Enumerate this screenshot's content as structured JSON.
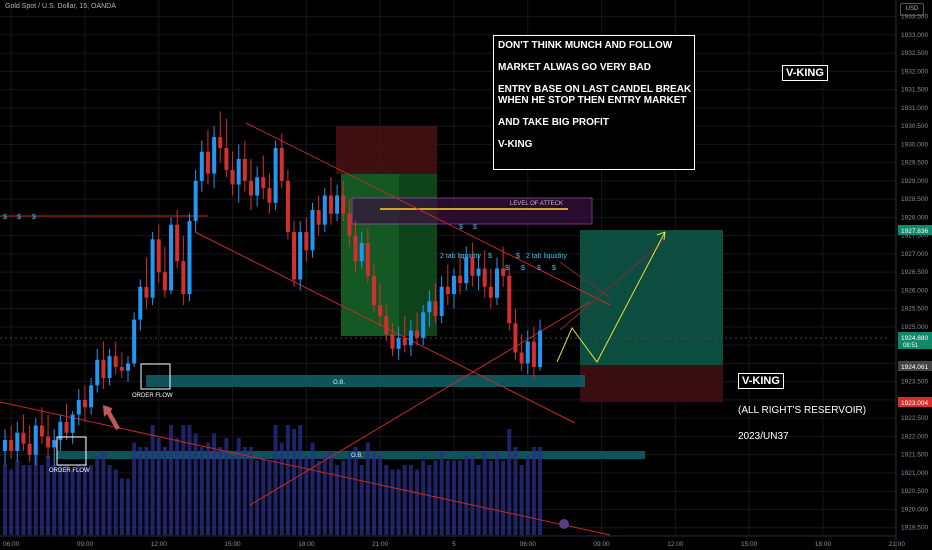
{
  "header": {
    "symbol_line": "Gold Spot / U.S. Dollar, 15, OANDA",
    "currency_badge": "USD"
  },
  "colors": {
    "bull": "#2196f3",
    "bear": "#d32f2f",
    "ob_zone": "#0e5c63",
    "target_zone": "#0d4d40",
    "stop_zone": "#4a1014",
    "red_line": "#c62828",
    "yellow_path": "#e0e040",
    "price_label_green": "#0e8a6b",
    "price_label_red": "#d32f2f",
    "volume": "#2a2f8a"
  },
  "notes": {
    "lines": [
      "DON'T THINK MUNCH AND FOLLOW",
      "",
      "MARKET ALWAS GO VERY BAD",
      "",
      "ENTRY BASE ON LAST CANDEL BREAK",
      "WHEN HE STOP THEN ENTRY MARKET",
      "",
      "AND TAKE BIG PROFIT",
      "",
      "V-KING"
    ]
  },
  "branding": {
    "vking_top": "V-KING",
    "vking_right": "V-KING",
    "rights": "(ALL RIGHT'S RESERVOIR)",
    "date": "2023/UN37"
  },
  "annotations": {
    "order_flow_1": "ORDER FLOW",
    "order_flow_2": "ORDER FLOW",
    "ob_1": "O.B.",
    "ob_2": "O.B.",
    "level": "LEVEL OF ATTECK",
    "liq_1": "2 tab liquidity",
    "liq_2": "2 tab liquidity",
    "dollar": "$"
  },
  "chart_data": {
    "type": "candlestick",
    "symbol": "Gold Spot / U.S. Dollar",
    "interval": "15",
    "exchange": "OANDA",
    "ylim": [
      1919.3,
      1933.9
    ],
    "y_ticks": [
      "1933.500",
      "1933.000",
      "1932.500",
      "1932.000",
      "1931.500",
      "1931.000",
      "1930.500",
      "1930.000",
      "1929.500",
      "1929.000",
      "1928.500",
      "1928.000",
      "1927.500",
      "1927.000",
      "1926.500",
      "1926.000",
      "1925.500",
      "1925.000",
      "1924.500",
      "1924.000",
      "1923.500",
      "1923.000",
      "1922.500",
      "1922.000",
      "1921.500",
      "1921.000",
      "1920.500",
      "1920.000",
      "1919.500"
    ],
    "x_ticks": [
      {
        "label": "06:00",
        "i": 1
      },
      {
        "label": "09:00",
        "i": 13
      },
      {
        "label": "12:00",
        "i": 25
      },
      {
        "label": "15:00",
        "i": 37
      },
      {
        "label": "18:00",
        "i": 49
      },
      {
        "label": "21:00",
        "i": 61
      },
      {
        "label": "5",
        "i": 73
      },
      {
        "label": "06:00",
        "i": 85
      },
      {
        "label": "09:00",
        "i": 97
      },
      {
        "label": "12:00",
        "i": 109
      },
      {
        "label": "15:00",
        "i": 121
      },
      {
        "label": "18:00",
        "i": 133
      },
      {
        "label": "21:00",
        "i": 145
      }
    ],
    "price_labels": {
      "target": "1927.836",
      "current": "1924.880",
      "countdown": "08:51",
      "entry": "1924.061",
      "stop": "1923.004"
    },
    "candles": [
      {
        "o": 1921.6,
        "h": 1922.2,
        "l": 1921.2,
        "c": 1921.9
      },
      {
        "o": 1921.9,
        "h": 1922.3,
        "l": 1921.4,
        "c": 1921.6
      },
      {
        "o": 1921.6,
        "h": 1922.4,
        "l": 1921.3,
        "c": 1922.1
      },
      {
        "o": 1922.1,
        "h": 1922.6,
        "l": 1921.6,
        "c": 1921.8
      },
      {
        "o": 1921.8,
        "h": 1922.3,
        "l": 1921.3,
        "c": 1921.5
      },
      {
        "o": 1921.5,
        "h": 1922.5,
        "l": 1921.2,
        "c": 1922.3
      },
      {
        "o": 1922.3,
        "h": 1922.8,
        "l": 1921.8,
        "c": 1922.0
      },
      {
        "o": 1922.0,
        "h": 1922.6,
        "l": 1921.4,
        "c": 1921.7
      },
      {
        "o": 1921.7,
        "h": 1922.2,
        "l": 1921.2,
        "c": 1921.9
      },
      {
        "o": 1921.9,
        "h": 1922.6,
        "l": 1921.6,
        "c": 1922.4
      },
      {
        "o": 1922.4,
        "h": 1922.9,
        "l": 1921.9,
        "c": 1922.1
      },
      {
        "o": 1922.1,
        "h": 1922.7,
        "l": 1921.8,
        "c": 1922.6
      },
      {
        "o": 1922.6,
        "h": 1923.3,
        "l": 1922.3,
        "c": 1923.0
      },
      {
        "o": 1923.0,
        "h": 1923.4,
        "l": 1922.4,
        "c": 1922.8
      },
      {
        "o": 1922.8,
        "h": 1923.6,
        "l": 1922.6,
        "c": 1923.4
      },
      {
        "o": 1923.4,
        "h": 1924.4,
        "l": 1923.2,
        "c": 1924.1
      },
      {
        "o": 1924.1,
        "h": 1924.6,
        "l": 1923.3,
        "c": 1923.6
      },
      {
        "o": 1923.6,
        "h": 1924.4,
        "l": 1923.4,
        "c": 1924.2
      },
      {
        "o": 1924.2,
        "h": 1924.6,
        "l": 1923.7,
        "c": 1923.9
      },
      {
        "o": 1923.9,
        "h": 1924.3,
        "l": 1923.6,
        "c": 1923.8
      },
      {
        "o": 1923.8,
        "h": 1924.2,
        "l": 1923.5,
        "c": 1924.0
      },
      {
        "o": 1924.0,
        "h": 1925.4,
        "l": 1923.9,
        "c": 1925.2
      },
      {
        "o": 1925.2,
        "h": 1926.3,
        "l": 1924.9,
        "c": 1926.1
      },
      {
        "o": 1926.1,
        "h": 1926.9,
        "l": 1925.5,
        "c": 1925.8
      },
      {
        "o": 1925.8,
        "h": 1927.6,
        "l": 1925.6,
        "c": 1927.4
      },
      {
        "o": 1927.4,
        "h": 1927.8,
        "l": 1926.2,
        "c": 1926.5
      },
      {
        "o": 1926.5,
        "h": 1927.2,
        "l": 1925.8,
        "c": 1926.0
      },
      {
        "o": 1926.0,
        "h": 1928.0,
        "l": 1925.9,
        "c": 1927.8
      },
      {
        "o": 1927.8,
        "h": 1928.2,
        "l": 1926.6,
        "c": 1926.8
      },
      {
        "o": 1926.8,
        "h": 1927.5,
        "l": 1925.6,
        "c": 1925.9
      },
      {
        "o": 1925.9,
        "h": 1928.1,
        "l": 1925.7,
        "c": 1927.9
      },
      {
        "o": 1927.9,
        "h": 1929.3,
        "l": 1927.6,
        "c": 1929.0
      },
      {
        "o": 1929.0,
        "h": 1930.1,
        "l": 1928.7,
        "c": 1929.8
      },
      {
        "o": 1929.8,
        "h": 1930.4,
        "l": 1928.9,
        "c": 1929.2
      },
      {
        "o": 1929.2,
        "h": 1930.5,
        "l": 1928.8,
        "c": 1930.2
      },
      {
        "o": 1930.2,
        "h": 1930.9,
        "l": 1929.5,
        "c": 1929.9
      },
      {
        "o": 1929.9,
        "h": 1930.7,
        "l": 1929.1,
        "c": 1929.3
      },
      {
        "o": 1929.3,
        "h": 1929.8,
        "l": 1928.6,
        "c": 1928.9
      },
      {
        "o": 1928.9,
        "h": 1930.0,
        "l": 1928.4,
        "c": 1929.6
      },
      {
        "o": 1929.6,
        "h": 1930.1,
        "l": 1928.7,
        "c": 1929.0
      },
      {
        "o": 1929.0,
        "h": 1929.6,
        "l": 1928.2,
        "c": 1928.6
      },
      {
        "o": 1928.6,
        "h": 1929.4,
        "l": 1928.3,
        "c": 1929.1
      },
      {
        "o": 1929.1,
        "h": 1929.7,
        "l": 1928.5,
        "c": 1928.8
      },
      {
        "o": 1928.8,
        "h": 1929.2,
        "l": 1928.1,
        "c": 1928.4
      },
      {
        "o": 1928.4,
        "h": 1930.1,
        "l": 1928.2,
        "c": 1929.9
      },
      {
        "o": 1929.9,
        "h": 1930.3,
        "l": 1928.8,
        "c": 1929.0
      },
      {
        "o": 1929.0,
        "h": 1929.3,
        "l": 1927.4,
        "c": 1927.6
      },
      {
        "o": 1927.6,
        "h": 1927.9,
        "l": 1926.1,
        "c": 1926.3
      },
      {
        "o": 1926.3,
        "h": 1927.9,
        "l": 1926.0,
        "c": 1927.6
      },
      {
        "o": 1927.6,
        "h": 1928.0,
        "l": 1926.8,
        "c": 1927.1
      },
      {
        "o": 1927.1,
        "h": 1928.4,
        "l": 1926.9,
        "c": 1928.2
      },
      {
        "o": 1928.2,
        "h": 1928.6,
        "l": 1927.5,
        "c": 1927.8
      },
      {
        "o": 1927.8,
        "h": 1928.8,
        "l": 1927.6,
        "c": 1928.6
      },
      {
        "o": 1928.6,
        "h": 1929.1,
        "l": 1927.8,
        "c": 1928.1
      },
      {
        "o": 1928.1,
        "h": 1928.9,
        "l": 1927.9,
        "c": 1928.6
      },
      {
        "o": 1928.6,
        "h": 1929.0,
        "l": 1927.9,
        "c": 1928.1
      },
      {
        "o": 1928.1,
        "h": 1928.5,
        "l": 1927.2,
        "c": 1927.5
      },
      {
        "o": 1927.5,
        "h": 1927.9,
        "l": 1926.5,
        "c": 1926.8
      },
      {
        "o": 1926.8,
        "h": 1927.6,
        "l": 1926.6,
        "c": 1927.3
      },
      {
        "o": 1927.3,
        "h": 1927.7,
        "l": 1926.2,
        "c": 1926.4
      },
      {
        "o": 1926.4,
        "h": 1926.7,
        "l": 1925.4,
        "c": 1925.6
      },
      {
        "o": 1925.6,
        "h": 1926.2,
        "l": 1925.0,
        "c": 1925.3
      },
      {
        "o": 1925.3,
        "h": 1925.6,
        "l": 1924.6,
        "c": 1924.8
      },
      {
        "o": 1924.8,
        "h": 1925.1,
        "l": 1924.2,
        "c": 1924.4
      },
      {
        "o": 1924.4,
        "h": 1925.0,
        "l": 1924.1,
        "c": 1924.7
      },
      {
        "o": 1924.7,
        "h": 1925.3,
        "l": 1924.3,
        "c": 1924.5
      },
      {
        "o": 1924.5,
        "h": 1925.2,
        "l": 1924.2,
        "c": 1924.9
      },
      {
        "o": 1924.9,
        "h": 1925.4,
        "l": 1924.5,
        "c": 1924.7
      },
      {
        "o": 1924.7,
        "h": 1925.6,
        "l": 1924.5,
        "c": 1925.4
      },
      {
        "o": 1925.4,
        "h": 1926.0,
        "l": 1925.0,
        "c": 1925.7
      },
      {
        "o": 1925.7,
        "h": 1926.2,
        "l": 1925.1,
        "c": 1925.3
      },
      {
        "o": 1925.3,
        "h": 1926.4,
        "l": 1925.1,
        "c": 1926.1
      },
      {
        "o": 1926.1,
        "h": 1926.7,
        "l": 1925.6,
        "c": 1925.9
      },
      {
        "o": 1925.9,
        "h": 1926.6,
        "l": 1925.5,
        "c": 1926.4
      },
      {
        "o": 1926.4,
        "h": 1927.0,
        "l": 1925.9,
        "c": 1926.2
      },
      {
        "o": 1926.2,
        "h": 1927.2,
        "l": 1926.0,
        "c": 1926.9
      },
      {
        "o": 1926.9,
        "h": 1927.3,
        "l": 1926.1,
        "c": 1926.4
      },
      {
        "o": 1926.4,
        "h": 1927.0,
        "l": 1926.0,
        "c": 1926.6
      },
      {
        "o": 1926.6,
        "h": 1927.1,
        "l": 1925.8,
        "c": 1926.1
      },
      {
        "o": 1926.1,
        "h": 1926.6,
        "l": 1925.5,
        "c": 1925.8
      },
      {
        "o": 1925.8,
        "h": 1926.9,
        "l": 1925.6,
        "c": 1926.6
      },
      {
        "o": 1926.6,
        "h": 1927.2,
        "l": 1926.1,
        "c": 1926.4
      },
      {
        "o": 1926.4,
        "h": 1926.7,
        "l": 1924.9,
        "c": 1925.1
      },
      {
        "o": 1925.1,
        "h": 1925.5,
        "l": 1924.1,
        "c": 1924.3
      },
      {
        "o": 1924.3,
        "h": 1924.8,
        "l": 1923.8,
        "c": 1924.0
      },
      {
        "o": 1924.0,
        "h": 1924.9,
        "l": 1923.7,
        "c": 1924.6
      },
      {
        "o": 1924.6,
        "h": 1925.0,
        "l": 1923.6,
        "c": 1923.9
      },
      {
        "o": 1923.9,
        "h": 1925.2,
        "l": 1923.8,
        "c": 1924.9
      }
    ]
  }
}
